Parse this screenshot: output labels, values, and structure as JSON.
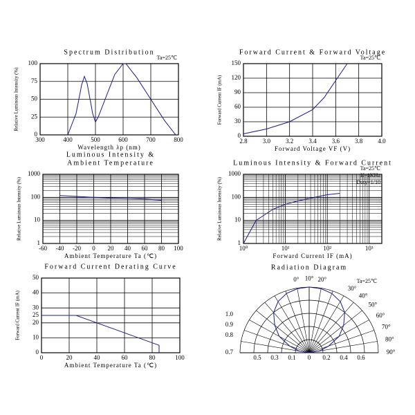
{
  "chart_data": [
    {
      "type": "line",
      "title": [
        "Spectrum Distribution"
      ],
      "annotations": [
        "Ta=25℃"
      ],
      "ylabel": "Relative Luminous Intensity (%)",
      "xlabel": "Wavelength λp (nm)",
      "x": [
        400,
        430,
        450,
        460,
        470,
        490,
        500,
        510,
        540,
        570,
        600,
        610,
        650,
        700,
        750,
        790
      ],
      "series": [
        {
          "color": "#1a1a8c",
          "values": [
            0,
            30,
            70,
            82,
            72,
            30,
            18,
            25,
            55,
            85,
            100,
            100,
            80,
            50,
            20,
            0
          ]
        }
      ],
      "xlim": [
        300,
        800
      ],
      "xticks": [
        300,
        400,
        500,
        600,
        700,
        800
      ],
      "ylim": [
        0,
        100
      ],
      "yticks": [
        0,
        25,
        50,
        75,
        100
      ],
      "grid": true
    },
    {
      "type": "line",
      "title": [
        "Forward Current & Forward Voltage"
      ],
      "annotations": [
        "Ta=25℃"
      ],
      "ylabel": "Forward Current IF (mA)",
      "xlabel": "Forward Voltage VF (V)",
      "x": [
        2.8,
        3.0,
        3.2,
        3.4,
        3.5,
        3.6,
        3.7
      ],
      "series": [
        {
          "color": "#1a1a8c",
          "values": [
            5,
            15,
            30,
            55,
            80,
            115,
            150
          ]
        }
      ],
      "xlim": [
        2.8,
        4.0
      ],
      "xticks": [
        2.8,
        {
          "value": 3,
          "label": "3.0"
        },
        3.2,
        3.4,
        3.6,
        3.8,
        {
          "value": 4,
          "label": "4.0"
        }
      ],
      "ylim": [
        0,
        150
      ],
      "yticks": [
        0,
        30,
        60,
        90,
        120,
        150
      ],
      "grid": true
    },
    {
      "type": "line",
      "title": [
        "Luminous Intensity &",
        "Ambient Temperature"
      ],
      "annotations": [],
      "ylabel": "Relative Luminous Intensity (%)",
      "xlabel": "Ambient Temperature Ta (℃)",
      "x": [
        -40,
        -20,
        0,
        20,
        40,
        60,
        80
      ],
      "series": [
        {
          "color": "#1a1a8c",
          "values": [
            120,
            110,
            100,
            95,
            90,
            85,
            75
          ]
        }
      ],
      "xlim": [
        -60,
        100
      ],
      "xticks": [
        -60,
        -40,
        -20,
        0,
        20,
        40,
        60,
        80,
        100
      ],
      "ylim": [
        1,
        1000
      ],
      "yticks": [
        1,
        10,
        100,
        1000
      ],
      "yscale": "log",
      "grid": true
    },
    {
      "type": "line",
      "title": [
        "Luminous Intensity & Forward Current"
      ],
      "annotations": [
        "Ta=25℃",
        "If=1KHz",
        "Duty=1/10"
      ],
      "ylabel": "Relative Luminous Intensity (%)",
      "xlabel": "Forward Current IF (mA)",
      "x": [
        1,
        2,
        5,
        10,
        20,
        50,
        100,
        200
      ],
      "series": [
        {
          "color": "#1a1a8c",
          "values": [
            1,
            10,
            30,
            50,
            70,
            100,
            130,
            150
          ]
        }
      ],
      "xlim": [
        1,
        2000
      ],
      "xticks": [
        {
          "value": 1,
          "label": "10⁰"
        },
        {
          "value": 10,
          "label": "10¹"
        },
        {
          "value": 100,
          "label": "10²"
        },
        {
          "value": 1000,
          "label": "10³"
        }
      ],
      "xscale": "log",
      "ylim": [
        1,
        1000
      ],
      "yticks": [
        1,
        10,
        100,
        1000
      ],
      "yscale": "log",
      "grid": true
    },
    {
      "type": "line",
      "title": [
        "Forward Current Derating Curve"
      ],
      "annotations": [],
      "ylabel": "Forward Current IF (mA)",
      "xlabel": "Ambient Temperature Ta (℃)",
      "x": [
        0,
        25,
        85,
        85
      ],
      "series": [
        {
          "color": "#1a1a8c",
          "values": [
            25,
            25,
            5,
            0
          ]
        }
      ],
      "xlim": [
        0,
        100
      ],
      "xticks": [
        0,
        20,
        40,
        60,
        80,
        100
      ],
      "ylim": [
        0,
        50
      ],
      "yticks": [
        0,
        10,
        20,
        25,
        30,
        40,
        50
      ],
      "grid": true
    },
    {
      "type": "polar",
      "title": [
        "Radiation Diagram"
      ],
      "annotations": [
        "Ta=25℃"
      ],
      "angles": [
        -90,
        -80,
        -70,
        -60,
        -50,
        -40,
        -30,
        -20,
        -10,
        0,
        10,
        20,
        30,
        40,
        50,
        60,
        70,
        80,
        90
      ],
      "series": [
        {
          "color": "#1a1a8c",
          "values": [
            0,
            0.15,
            0.3,
            0.5,
            0.65,
            0.8,
            0.9,
            0.96,
            0.99,
            1,
            0.99,
            0.96,
            0.9,
            0.8,
            0.65,
            0.5,
            0.3,
            0.15,
            0
          ]
        }
      ],
      "rgrid": [
        0.2,
        0.4,
        0.6,
        0.8,
        1
      ],
      "angle_ticks": [
        {
          "value": 0,
          "label": "0°"
        },
        {
          "value": 10,
          "label": "10°"
        },
        {
          "value": 20,
          "label": "20°"
        },
        {
          "value": 30,
          "label": "30°"
        },
        {
          "value": 40,
          "label": "40°"
        },
        {
          "value": 50,
          "label": "50°"
        },
        {
          "value": 60,
          "label": "60°"
        },
        {
          "value": 70,
          "label": "70°"
        },
        {
          "value": 80,
          "label": "80°"
        },
        {
          "value": 90,
          "label": "90°"
        }
      ],
      "side_labels": [
        "1.0",
        "0.9",
        "0.8",
        "0.7"
      ],
      "bottom_labels": [
        "0.5",
        "0.3",
        "0.1",
        "0",
        "0.2",
        "0.4",
        "0.6"
      ]
    }
  ]
}
